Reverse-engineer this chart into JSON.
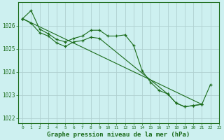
{
  "title": "Graphe pression niveau de la mer (hPa)",
  "background_color": "#cdf0f0",
  "grid_color": "#b0d0d0",
  "line_color": "#1a6b1a",
  "xlim": [
    -0.5,
    23
  ],
  "ylim": [
    1021.8,
    1027.0
  ],
  "yticks": [
    1022,
    1023,
    1024,
    1025,
    1026
  ],
  "xticks": [
    0,
    1,
    2,
    3,
    4,
    5,
    6,
    7,
    8,
    9,
    10,
    11,
    12,
    13,
    14,
    15,
    16,
    17,
    18,
    19,
    20,
    21,
    22,
    23
  ],
  "s1x": [
    0,
    1,
    2,
    3,
    4,
    5,
    6,
    7,
    8,
    9,
    10,
    11,
    12,
    13,
    14,
    15,
    16,
    17,
    18,
    19,
    20,
    21
  ],
  "s1y": [
    1026.3,
    1026.65,
    1025.85,
    1025.65,
    1025.4,
    1025.3,
    1025.45,
    1025.55,
    1025.8,
    1025.8,
    1025.55,
    1025.55,
    1025.6,
    1025.15,
    1024.05,
    1023.55,
    1023.2,
    1023.05,
    1022.65,
    1022.5,
    1022.55,
    1022.6
  ],
  "s2x": [
    0,
    1,
    2,
    3,
    4,
    5,
    6,
    7,
    8,
    9,
    17,
    18,
    19,
    20,
    21
  ],
  "s2y": [
    1026.3,
    1026.1,
    1025.7,
    1025.55,
    1025.25,
    1025.1,
    1025.3,
    1025.35,
    1025.5,
    1025.45,
    1023.05,
    1022.65,
    1022.5,
    1022.55,
    1022.6
  ],
  "s3x": [
    0,
    21,
    22
  ],
  "s3y": [
    1026.3,
    1022.6,
    1023.45
  ]
}
